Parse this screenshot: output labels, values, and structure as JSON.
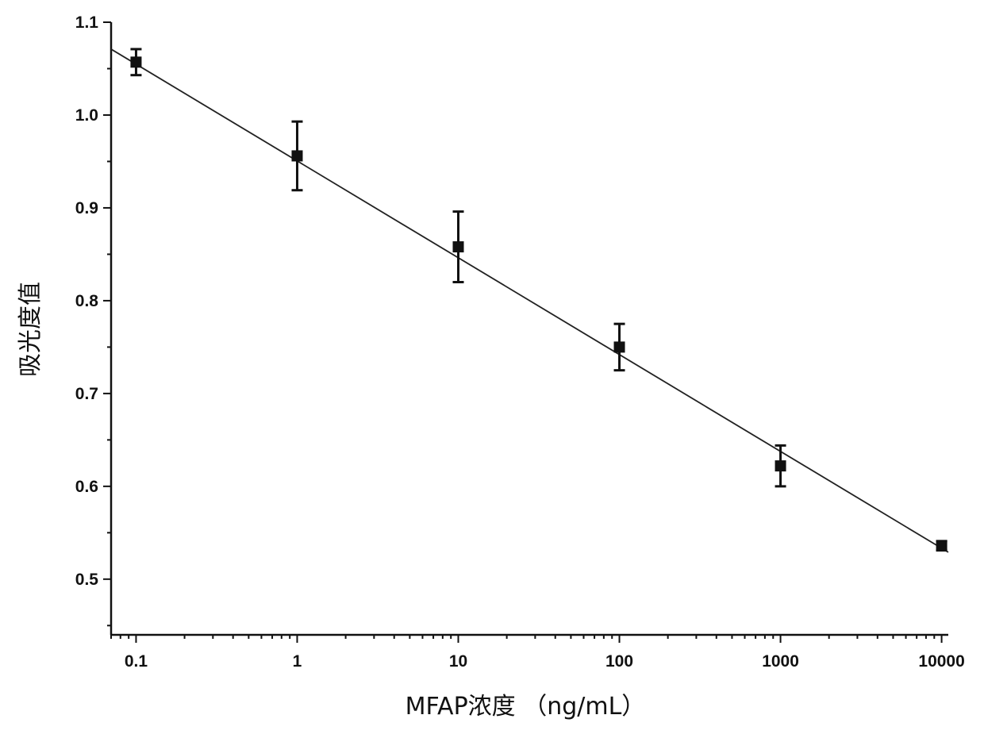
{
  "chart_data": {
    "type": "scatter",
    "xlabel": "MFAP浓度 （ng/mL）",
    "ylabel": "吸光度值",
    "xscale": "log",
    "xlim": [
      0.07,
      11000
    ],
    "ylim": [
      0.44,
      1.1
    ],
    "xticks": [
      0.1,
      1,
      10,
      100,
      1000,
      10000
    ],
    "xtick_labels": [
      "0.1",
      "1",
      "10",
      "100",
      "1000",
      "10000"
    ],
    "yticks": [
      0.5,
      0.6,
      0.7,
      0.8,
      0.9,
      1.0,
      1.1
    ],
    "ytick_labels": [
      "0.5",
      "0.6",
      "0.7",
      "0.8",
      "0.9",
      "1.0",
      "1.1"
    ],
    "grid": false,
    "series": [
      {
        "x": [
          0.1,
          1,
          10,
          100,
          1000,
          10000
        ],
        "y": [
          1.057,
          0.956,
          0.858,
          0.75,
          0.622,
          0.536
        ],
        "error": [
          0.014,
          0.037,
          0.038,
          0.025,
          0.022,
          0.005
        ]
      }
    ],
    "fit_line": {
      "x": [
        0.07,
        11000
      ],
      "y": [
        1.071,
        0.529
      ]
    }
  }
}
